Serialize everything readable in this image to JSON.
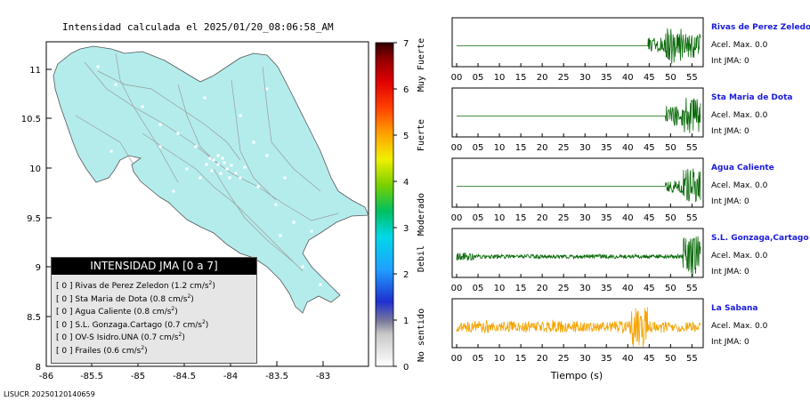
{
  "map": {
    "title": "Intensidad calculada el 2025/01/20_08:06:58_AM",
    "x_ticks": [
      "-86",
      "-85.5",
      "-85",
      "-84.5",
      "-84",
      "-83.5",
      "-83"
    ],
    "y_ticks": [
      "11",
      "10.5",
      "10",
      "9.5",
      "9",
      "8.5",
      "8"
    ],
    "land_color": "#b4ecec"
  },
  "colorbar": {
    "ticks": [
      "7",
      "6",
      "5",
      "4",
      "3",
      "2",
      "1",
      "0"
    ],
    "labels": [
      "Muy Fuerte",
      "Fuerte",
      "Moderado",
      "Debil",
      "No sentido"
    ]
  },
  "legend": {
    "title": "INTENSIDAD JMA [0 a 7]",
    "items": [
      {
        "value": "[ 0 ]",
        "station": "Rivas de Perez Zeledon",
        "accel": "(1.2 cm/s",
        "exp": "2",
        "close": ")"
      },
      {
        "value": "[ 0 ]",
        "station": "Sta Maria de Dota",
        "accel": "(0.8 cm/s",
        "exp": "2",
        "close": ")"
      },
      {
        "value": "[ 0 ]",
        "station": "Agua Caliente",
        "accel": "(0.8 cm/s",
        "exp": "2",
        "close": ")"
      },
      {
        "value": "[ 0 ]",
        "station": "S.L. Gonzaga.Cartago",
        "accel": "(0.7 cm/s",
        "exp": "2",
        "close": ")"
      },
      {
        "value": "[ 0 ]",
        "station": "OV-S Isidro.UNA",
        "accel": "(0.7 cm/s",
        "exp": "2",
        "close": ")"
      },
      {
        "value": "[ 0 ]",
        "station": "Frailes",
        "accel": "(0.6 cm/s",
        "exp": "2",
        "close": ")"
      }
    ]
  },
  "waveforms": {
    "time_ticks": [
      "00",
      "05",
      "10",
      "15",
      "20",
      "25",
      "30",
      "35",
      "40",
      "45",
      "50",
      "55"
    ],
    "xlabel": "Tiempo (s)",
    "traces": [
      {
        "name": "Rivas de Perez Zeledon",
        "acel": "Acel. Max. 0.0",
        "int": "Int JMA: 0",
        "color": "#0a6a0a"
      },
      {
        "name": "Sta Maria de Dota",
        "acel": "Acel. Max. 0.0",
        "int": "Int JMA: 0",
        "color": "#0a6a0a"
      },
      {
        "name": "Agua Caliente",
        "acel": "Acel. Max. 0.0",
        "int": "Int JMA: 0",
        "color": "#0a6a0a"
      },
      {
        "name": "S.L. Gonzaga,Cartago",
        "acel": "Acel. Max. 0.0",
        "int": "Int JMA: 0",
        "color": "#0a6a0a"
      },
      {
        "name": "La Sabana",
        "acel": "Acel. Max. 0.0",
        "int": "Int JMA: 0",
        "color": "#f5a300"
      }
    ]
  },
  "footer": "LISUCR 20250120140659",
  "chart_data": {
    "type": "line",
    "xlabel": "Tiempo (s)",
    "xlim": [
      0,
      57
    ],
    "series": [
      {
        "name": "Rivas de Perez Zeledon",
        "values": [
          0,
          0,
          0,
          0,
          0,
          0,
          0,
          0,
          0,
          0,
          0,
          0.4,
          0.9,
          0.6
        ]
      },
      {
        "name": "Sta Maria de Dota",
        "values": [
          0,
          0,
          0,
          0,
          0,
          0,
          0,
          0,
          0,
          0,
          0,
          0,
          0.5,
          0.9
        ]
      },
      {
        "name": "Agua Caliente",
        "values": [
          0,
          0,
          0,
          0,
          0,
          0,
          0,
          0,
          0,
          0,
          0,
          0,
          0.3,
          0.9
        ]
      },
      {
        "name": "S.L. Gonzaga,Cartago",
        "values": [
          0.2,
          0.1,
          0.1,
          0.1,
          0.1,
          0.1,
          0.1,
          0.1,
          0.1,
          0.1,
          0.1,
          0.1,
          0.1,
          1.0
        ]
      },
      {
        "name": "La Sabana",
        "values": [
          0.25,
          0.3,
          0.25,
          0.3,
          0.25,
          0.35,
          0.3,
          0.25,
          0.25,
          0.3,
          1.0,
          0.3,
          0.25,
          0.25
        ]
      }
    ]
  }
}
